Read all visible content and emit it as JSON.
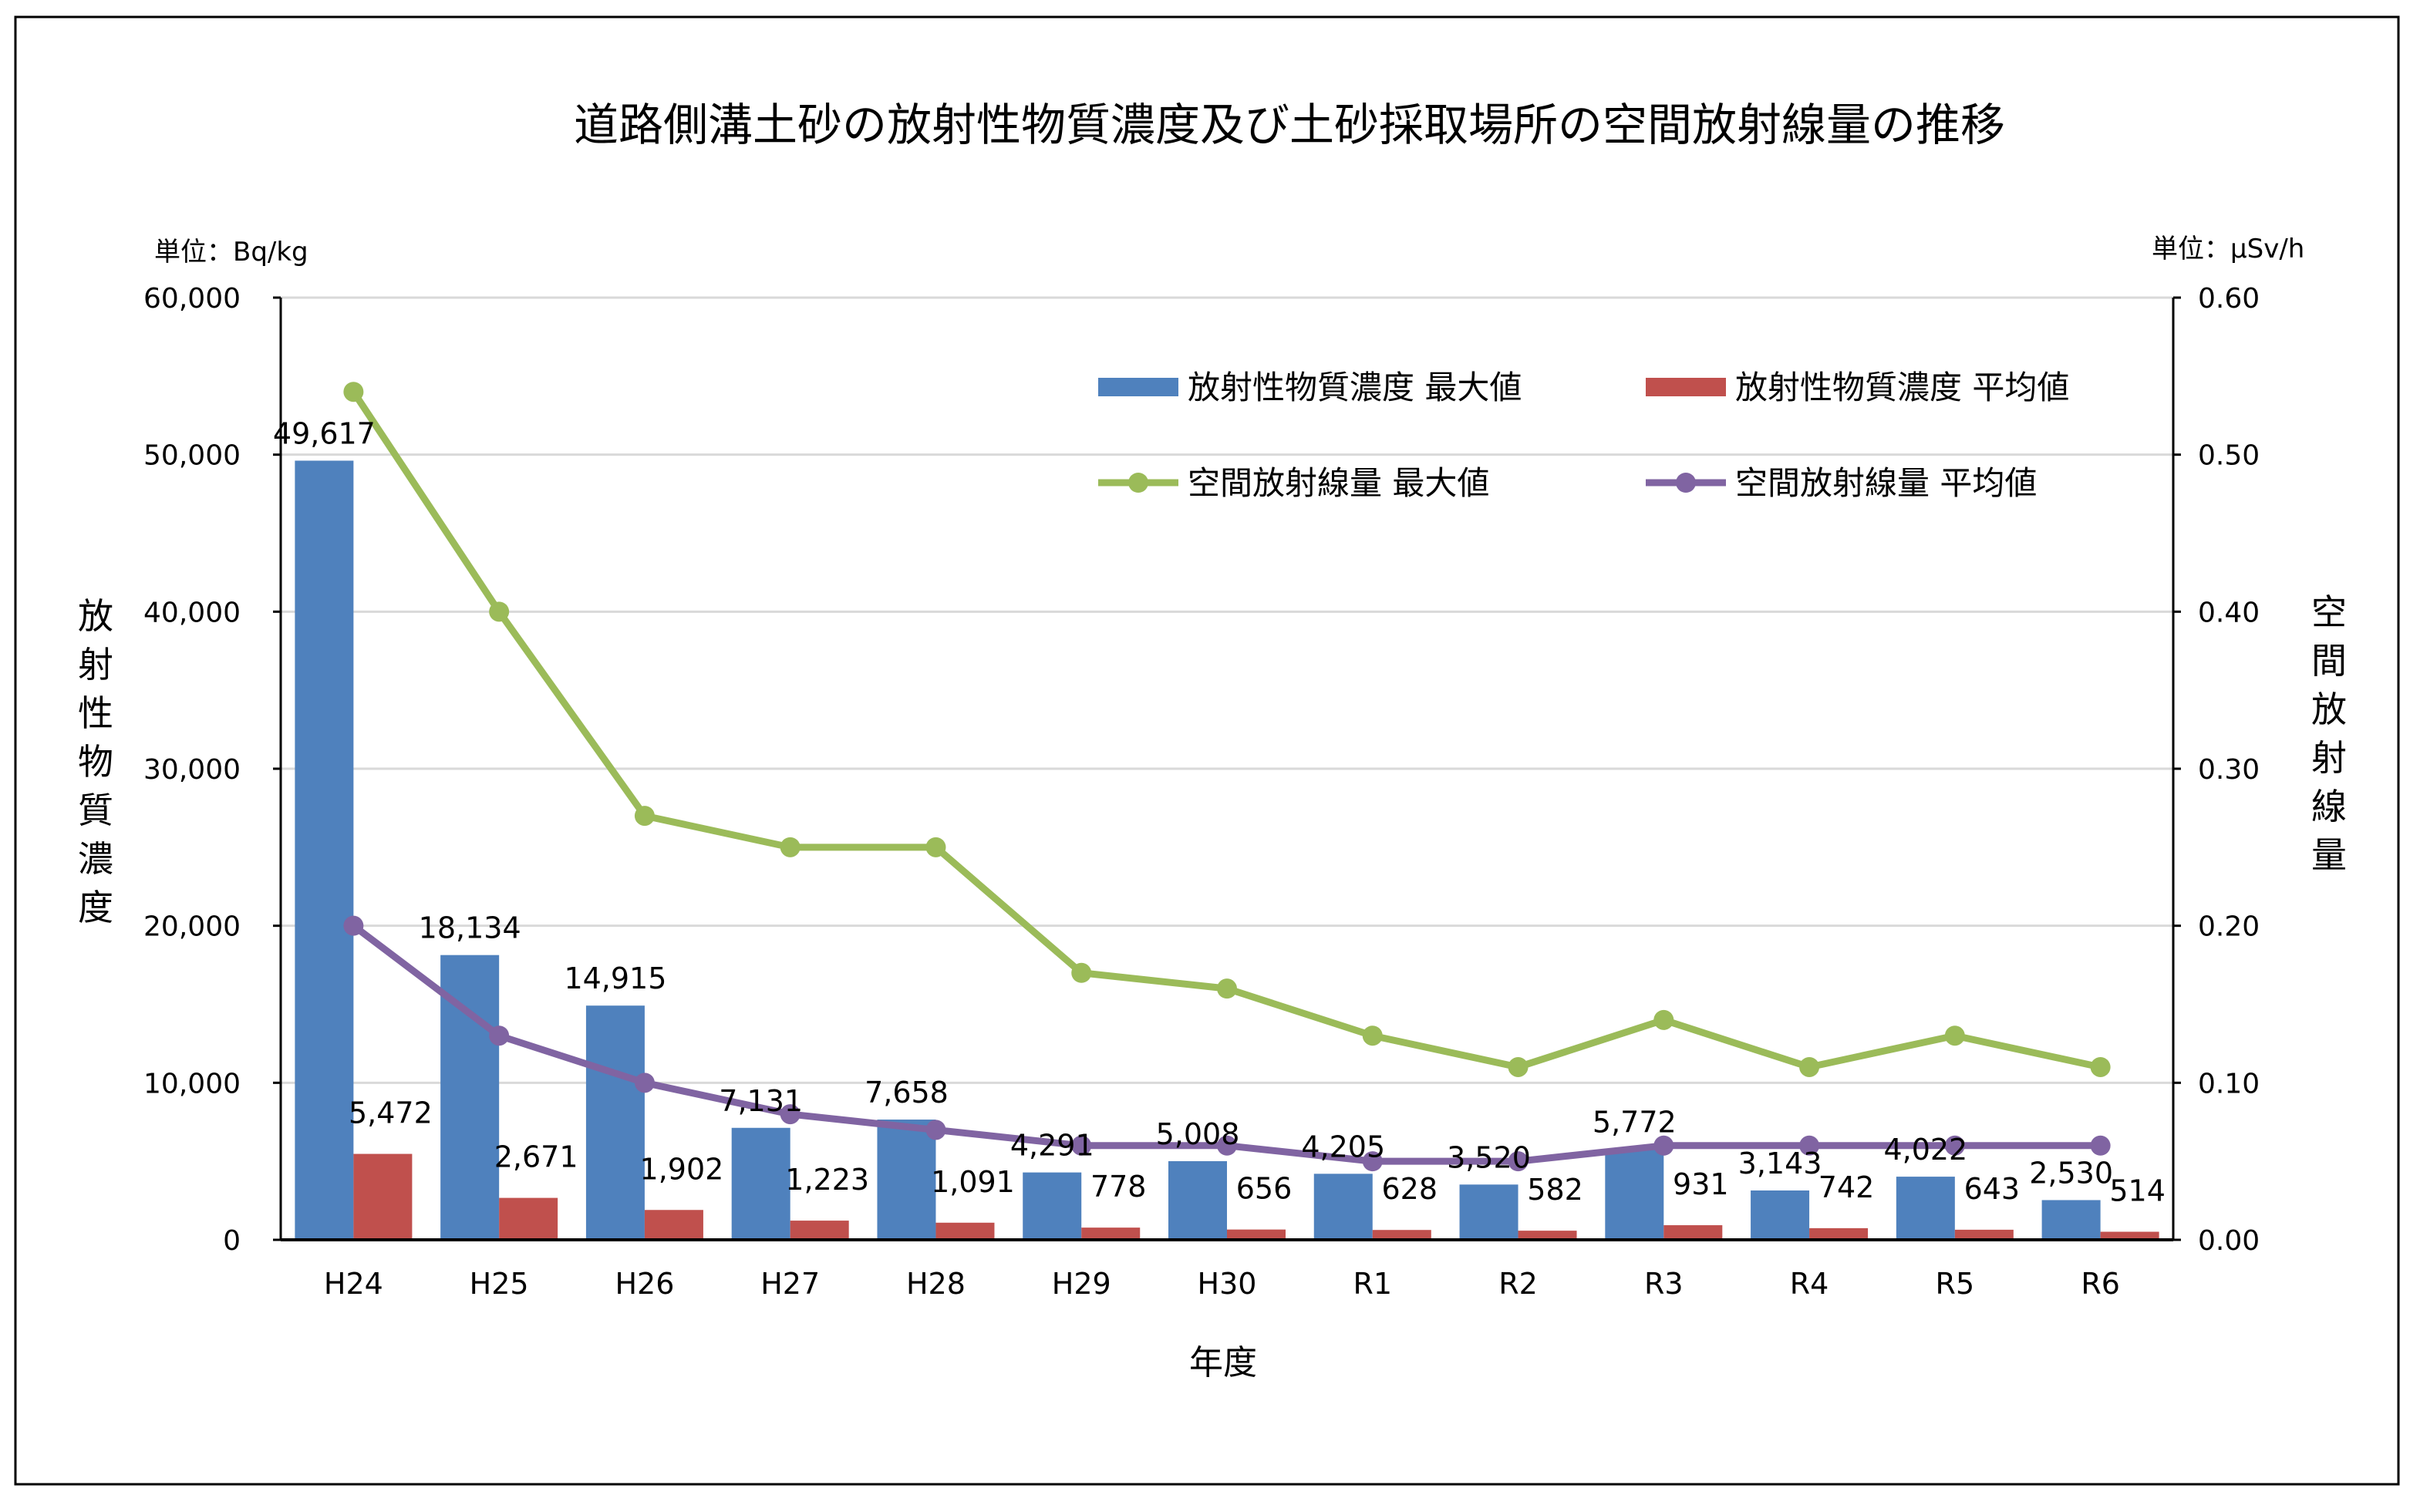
{
  "chart_data": {
    "type": "bar+line",
    "title": "道路側溝土砂の放射性物質濃度及び土砂採取場所の空間放射線量の推移",
    "xlabel": "年度",
    "ylabel_left": "放射性物質濃度",
    "ylabel_right": "空間放射線量",
    "unit_left": "単位：Bq/kg",
    "unit_right": "単位：μSv/h",
    "ylim_left": [
      0,
      60000
    ],
    "ylim_right": [
      0,
      0.6
    ],
    "yticks_left": [
      "0",
      "10,000",
      "20,000",
      "30,000",
      "40,000",
      "50,000",
      "60,000"
    ],
    "yticks_right": [
      "0.00",
      "0.10",
      "0.20",
      "0.30",
      "0.40",
      "0.50",
      "0.60"
    ],
    "grid": true,
    "legend_position": "top-right",
    "categories": [
      "H24",
      "H25",
      "H26",
      "H27",
      "H28",
      "H29",
      "H30",
      "R1",
      "R2",
      "R3",
      "R4",
      "R5",
      "R6"
    ],
    "bar_series": [
      {
        "name": "放射性物質濃度 最大値",
        "color": "#4f81bd",
        "values": [
          49617,
          18134,
          14915,
          7131,
          7658,
          4291,
          5008,
          4205,
          3520,
          5772,
          3143,
          4022,
          2530
        ],
        "labels": [
          "49,617",
          "18,134",
          "14,915",
          "7,131",
          "7,658",
          "4,291",
          "5,008",
          "4,205",
          "3,520",
          "5,772",
          "3,143",
          "4,022",
          "2,530"
        ]
      },
      {
        "name": "放射性物質濃度 平均値",
        "color": "#c0504d",
        "values": [
          5472,
          2671,
          1902,
          1223,
          1091,
          778,
          656,
          628,
          582,
          931,
          742,
          643,
          514
        ],
        "labels": [
          "5,472",
          "2,671",
          "1,902",
          "1,223",
          "1,091",
          "778",
          "656",
          "628",
          "582",
          "931",
          "742",
          "643",
          "514"
        ]
      }
    ],
    "line_series": [
      {
        "name": "空間放射線量 最大値",
        "color": "#9bbb59",
        "axis": "right",
        "values": [
          0.54,
          0.4,
          0.27,
          0.25,
          0.25,
          0.17,
          0.16,
          0.13,
          0.11,
          0.14,
          0.11,
          0.13,
          0.11
        ]
      },
      {
        "name": "空間放射線量 平均値",
        "color": "#8064a2",
        "axis": "right",
        "values": [
          0.2,
          0.13,
          0.1,
          0.08,
          0.07,
          0.06,
          0.06,
          0.05,
          0.05,
          0.06,
          0.06,
          0.06,
          0.06
        ]
      }
    ]
  }
}
